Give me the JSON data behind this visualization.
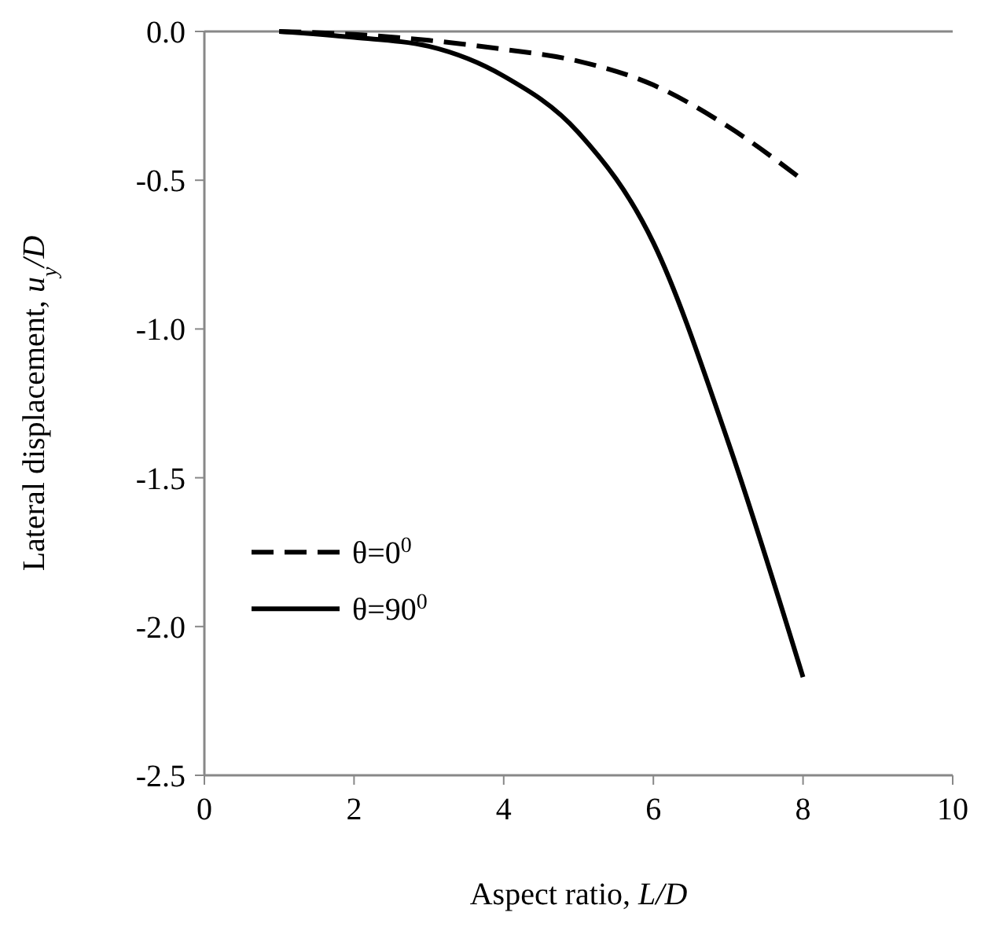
{
  "chart_data": {
    "type": "line",
    "xlabel": "Aspect ratio, L/D",
    "ylabel": "Lateral displacement, u$_{y}$/D",
    "x": [
      1,
      2,
      3,
      4,
      5,
      6,
      7,
      8
    ],
    "series": [
      {
        "name": "θ=0$^{0}$",
        "color": "#000000",
        "line_style": "dashed",
        "values": [
          0,
          -0.01,
          -0.03,
          -0.06,
          -0.1,
          -0.18,
          -0.32,
          -0.5
        ]
      },
      {
        "name": "θ=90$^{0}$",
        "color": "#000000",
        "line_style": "solid",
        "values": [
          0,
          -0.02,
          -0.05,
          -0.15,
          -0.34,
          -0.71,
          -1.38,
          -2.17
        ]
      }
    ],
    "xlim": [
      0,
      10
    ],
    "xticks": [
      0,
      2,
      4,
      6,
      8,
      10
    ],
    "ylim": [
      -2.5,
      0
    ],
    "yticks": [
      {
        "value": -2.5,
        "label": "-2.5"
      },
      {
        "value": -2,
        "label": "-2.0"
      },
      {
        "value": -1.5,
        "label": "-1.5"
      },
      {
        "value": -1,
        "label": "-1.0"
      },
      {
        "value": -0.5,
        "label": "-0.5"
      },
      {
        "value": 0,
        "label": "0.0"
      }
    ],
    "grid": false,
    "legend": "bottom left",
    "marker": "none"
  }
}
